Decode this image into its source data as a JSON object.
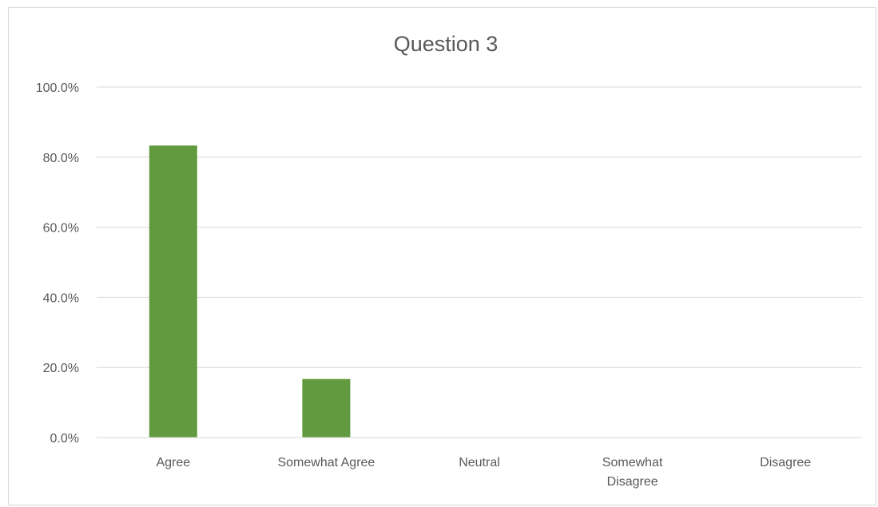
{
  "chart_data": {
    "type": "bar",
    "title": "Question 3",
    "xlabel": "",
    "ylabel": "",
    "categories": [
      "Agree",
      "Somewhat Agree",
      "Neutral",
      "Somewhat Disagree",
      "Disagree"
    ],
    "values": [
      83.3,
      16.7,
      0,
      0,
      0
    ],
    "ylim": [
      0,
      100
    ],
    "yticks": [
      "0.0%",
      "20.0%",
      "40.0%",
      "60.0%",
      "80.0%",
      "100.0%"
    ],
    "grid": true,
    "legend": "none",
    "bar_color": "#629b3f",
    "grid_color": "#d9d9d9"
  }
}
